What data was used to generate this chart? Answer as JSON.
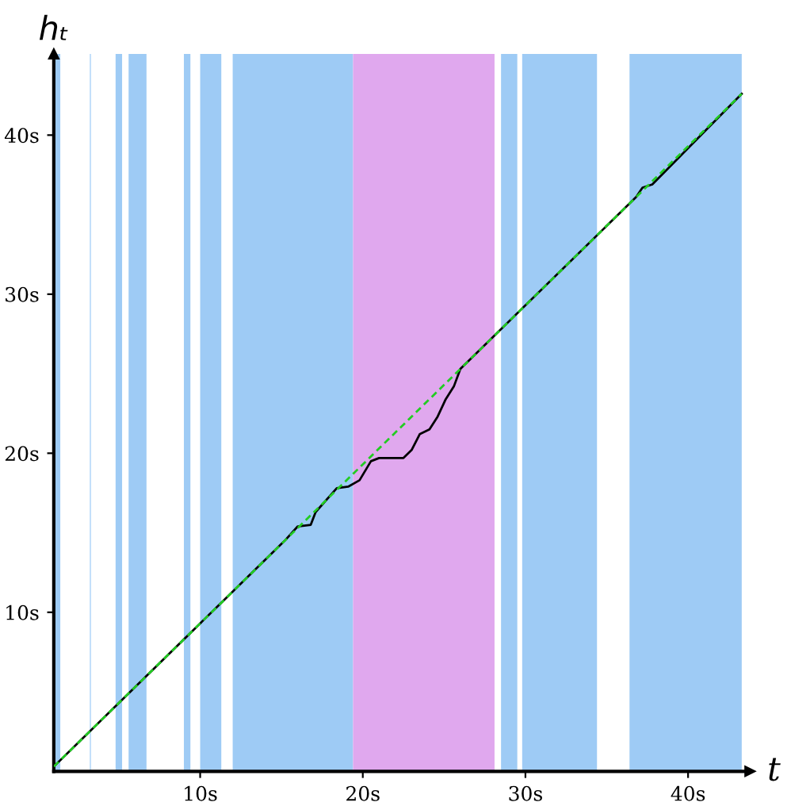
{
  "chart_data": {
    "type": "line",
    "xlabel": "t",
    "ylabel": "hₜ",
    "xlim": [
      1.0,
      43.8
    ],
    "ylim": [
      0,
      45.1
    ],
    "xticks": [
      {
        "value": 10,
        "label": "10s"
      },
      {
        "value": 20,
        "label": "20s"
      },
      {
        "value": 30,
        "label": "30s"
      },
      {
        "value": 40,
        "label": "40s"
      }
    ],
    "yticks": [
      {
        "value": 10,
        "label": "10s"
      },
      {
        "value": 20,
        "label": "20s"
      },
      {
        "value": 30,
        "label": "30s"
      },
      {
        "value": 40,
        "label": "40s"
      }
    ],
    "grid": false,
    "legend": false,
    "marker": "none",
    "bands": [
      {
        "axis": "x",
        "from": 1.0,
        "to": 1.4,
        "color": "#9ecbf5"
      },
      {
        "axis": "x",
        "from": 3.2,
        "to": 3.3,
        "color": "#c4e0fa"
      },
      {
        "axis": "x",
        "from": 4.8,
        "to": 5.2,
        "color": "#9ecbf5"
      },
      {
        "axis": "x",
        "from": 5.6,
        "to": 6.7,
        "color": "#9ecbf5"
      },
      {
        "axis": "x",
        "from": 9.0,
        "to": 9.4,
        "color": "#9ecbf5"
      },
      {
        "axis": "x",
        "from": 10.0,
        "to": 11.3,
        "color": "#9ecbf5"
      },
      {
        "axis": "x",
        "from": 12.0,
        "to": 19.4,
        "color": "#9ecbf5"
      },
      {
        "axis": "x",
        "from": 19.4,
        "to": 28.1,
        "color": "#e0a8ee"
      },
      {
        "axis": "x",
        "from": 28.5,
        "to": 29.5,
        "color": "#9ecbf5"
      },
      {
        "axis": "x",
        "from": 29.8,
        "to": 34.4,
        "color": "#9ecbf5"
      },
      {
        "axis": "x",
        "from": 36.4,
        "to": 43.3,
        "color": "#9ecbf5"
      }
    ],
    "series": [
      {
        "color": "#000000",
        "line_style": "solid",
        "x": [
          1.0,
          15.2,
          16.0,
          16.8,
          17.1,
          18.4,
          19.1,
          19.8,
          20.5,
          21.0,
          22.5,
          23.0,
          23.5,
          24.1,
          24.6,
          25.1,
          25.6,
          26.0,
          36.8,
          37.2,
          37.8,
          43.3
        ],
        "values": [
          0.3,
          14.5,
          15.4,
          15.5,
          16.3,
          17.8,
          17.9,
          18.3,
          19.5,
          19.7,
          19.7,
          20.2,
          21.2,
          21.5,
          22.3,
          23.4,
          24.2,
          25.3,
          36.1,
          36.7,
          36.9,
          42.6
        ]
      },
      {
        "color": "#22cc22",
        "line_style": "dashed",
        "x": [
          1.0,
          43.3
        ],
        "values": [
          0.3,
          42.6
        ]
      }
    ]
  }
}
